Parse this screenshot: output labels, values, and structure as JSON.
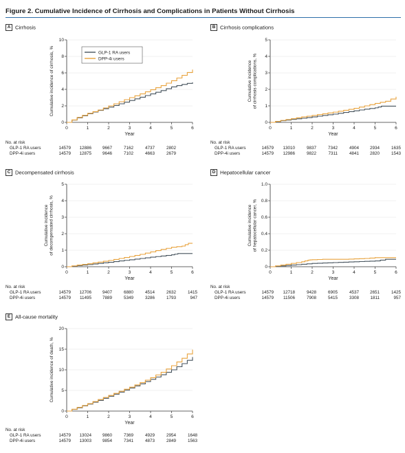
{
  "figure": {
    "title": "Figure 2. Cumulative Incidence of Cirrhosis and Complications in Patients Without Cirrhosis"
  },
  "colors": {
    "glp1": "#45525c",
    "dpp4": "#e8a23c",
    "axis": "#333333",
    "rule": "#2b6ea8"
  },
  "legend": {
    "glp1": "GLP-1 RA users",
    "dpp4": "DPP-4i users",
    "placement": "top-left"
  },
  "risk_table": {
    "header": "No. at risk",
    "row_labels": [
      "GLP-1 RA users",
      "DPP-4i users"
    ]
  },
  "chart_data": [
    {
      "type": "line",
      "letter": "A",
      "title": "Cirrhosis",
      "xlabel": "Year",
      "ylabel": "Cumulative incidence of cirrhosis, %",
      "xlim": [
        0,
        6
      ],
      "ylim": [
        0,
        10
      ],
      "xticks": [
        0,
        1,
        2,
        3,
        4,
        5,
        6
      ],
      "yticks": [
        0,
        2,
        4,
        6,
        8,
        10
      ],
      "grid": false,
      "legend": true,
      "series": [
        {
          "key": "glp1",
          "x": [
            0,
            0.5,
            1,
            1.5,
            2,
            2.5,
            3,
            3.5,
            4,
            4.5,
            5,
            5.5,
            6
          ],
          "y": [
            0,
            0.55,
            1.05,
            1.45,
            1.85,
            2.25,
            2.65,
            3.05,
            3.45,
            3.85,
            4.3,
            4.6,
            4.85
          ]
        },
        {
          "key": "dpp4",
          "x": [
            0,
            0.5,
            1,
            1.5,
            2,
            2.5,
            3,
            3.5,
            4,
            4.5,
            5,
            5.5,
            6
          ],
          "y": [
            0,
            0.6,
            1.1,
            1.5,
            2.0,
            2.5,
            3.0,
            3.45,
            3.95,
            4.45,
            5.05,
            5.7,
            6.4
          ]
        }
      ],
      "at_risk": {
        "glp1": [
          14579,
          12886,
          9667,
          7162,
          4737,
          2802,
          null
        ],
        "dpp4": [
          14579,
          12875,
          9646,
          7102,
          4663,
          2679,
          null
        ]
      }
    },
    {
      "type": "line",
      "letter": "B",
      "title": "Cirrhosis complications",
      "xlabel": "Year",
      "ylabel": "Cumulative incidence of cirrhosis complications, %",
      "ylabel_lines": [
        "Cumulative incidence",
        "of cirrhosis complications, %"
      ],
      "xlim": [
        0,
        6
      ],
      "ylim": [
        0,
        5
      ],
      "xticks": [
        0,
        1,
        2,
        3,
        4,
        5,
        6
      ],
      "yticks": [
        0,
        1,
        2,
        3,
        4,
        5
      ],
      "grid": false,
      "legend": false,
      "series": [
        {
          "key": "glp1",
          "x": [
            0,
            0.5,
            1,
            1.5,
            2,
            2.5,
            3,
            3.5,
            4,
            4.5,
            5,
            5.3,
            6
          ],
          "y": [
            0,
            0.1,
            0.18,
            0.25,
            0.33,
            0.42,
            0.5,
            0.6,
            0.7,
            0.8,
            0.88,
            0.98,
            0.98
          ]
        },
        {
          "key": "dpp4",
          "x": [
            0,
            0.5,
            1,
            1.5,
            2,
            2.5,
            3,
            3.5,
            4,
            4.5,
            5,
            5.5,
            6
          ],
          "y": [
            0,
            0.12,
            0.22,
            0.33,
            0.42,
            0.52,
            0.62,
            0.73,
            0.85,
            1.0,
            1.15,
            1.28,
            1.55
          ]
        }
      ],
      "at_risk": {
        "glp1": [
          14579,
          13010,
          9837,
          7342,
          4904,
          2934,
          1635
        ],
        "dpp4": [
          14579,
          12986,
          9822,
          7311,
          4841,
          2820,
          1543
        ]
      }
    },
    {
      "type": "line",
      "letter": "C",
      "title": "Decompensated cirrhosis",
      "xlabel": "Year",
      "ylabel": "Cumulative incidence of decompensated cirrhosis, %",
      "ylabel_lines": [
        "Cumulative incidence",
        "of decompensated cirrhosis, %"
      ],
      "xlim": [
        0,
        6
      ],
      "ylim": [
        0,
        5
      ],
      "xticks": [
        0,
        1,
        2,
        3,
        4,
        5,
        6
      ],
      "yticks": [
        0,
        1,
        2,
        3,
        4,
        5
      ],
      "grid": false,
      "legend": false,
      "series": [
        {
          "key": "glp1",
          "x": [
            0,
            0.5,
            1,
            1.5,
            2,
            2.5,
            3,
            3.5,
            4,
            4.5,
            5,
            5.3,
            6
          ],
          "y": [
            0,
            0.07,
            0.13,
            0.2,
            0.27,
            0.35,
            0.42,
            0.5,
            0.58,
            0.65,
            0.72,
            0.8,
            0.8
          ]
        },
        {
          "key": "dpp4",
          "x": [
            0,
            0.5,
            1,
            1.5,
            2,
            2.5,
            3,
            3.5,
            4,
            4.5,
            5,
            5.5,
            5.8,
            6
          ],
          "y": [
            0,
            0.1,
            0.18,
            0.28,
            0.38,
            0.5,
            0.62,
            0.75,
            0.9,
            1.05,
            1.18,
            1.25,
            1.42,
            1.42
          ]
        }
      ],
      "at_risk": {
        "glp1": [
          14579,
          12706,
          9407,
          6880,
          4514,
          2632,
          1415
        ],
        "dpp4": [
          14579,
          11495,
          7889,
          5349,
          3286,
          1793,
          947
        ]
      }
    },
    {
      "type": "line",
      "letter": "D",
      "title": "Hepatocellular cancer",
      "xlabel": "Year",
      "ylabel": "Cumulative incidence of hepatocellular cancer, %",
      "ylabel_lines": [
        "Cumulative incidence",
        "of hepatocellular cancer, %"
      ],
      "xlim": [
        0,
        6
      ],
      "ylim": [
        0,
        1.0
      ],
      "xticks": [
        0,
        1,
        2,
        3,
        4,
        5,
        6
      ],
      "yticks": [
        0,
        0.2,
        0.4,
        0.6,
        0.8,
        1.0
      ],
      "ytick_labels": [
        "0",
        "0.2",
        "0.4",
        "0.6",
        "0.8",
        "1.0"
      ],
      "grid": false,
      "legend": false,
      "series": [
        {
          "key": "glp1",
          "x": [
            0,
            0.5,
            1,
            1.5,
            2,
            2.5,
            3,
            3.5,
            4,
            4.5,
            5,
            5.5,
            6
          ],
          "y": [
            0,
            0.01,
            0.02,
            0.03,
            0.04,
            0.045,
            0.05,
            0.055,
            0.06,
            0.065,
            0.07,
            0.09,
            0.09
          ]
        },
        {
          "key": "dpp4",
          "x": [
            0,
            0.5,
            1,
            1.5,
            1.8,
            2,
            2.5,
            3,
            3.5,
            4,
            4.5,
            5,
            6
          ],
          "y": [
            0,
            0.02,
            0.04,
            0.06,
            0.08,
            0.085,
            0.09,
            0.09,
            0.09,
            0.095,
            0.1,
            0.11,
            0.11
          ]
        }
      ],
      "at_risk": {
        "glp1": [
          14579,
          12718,
          9428,
          6905,
          4537,
          2651,
          1425
        ],
        "dpp4": [
          14579,
          11506,
          7908,
          5415,
          3308,
          1811,
          957
        ]
      }
    },
    {
      "type": "line",
      "letter": "E",
      "title": "All-cause mortality",
      "xlabel": "Year",
      "ylabel": "Cumulative incidence of death, %",
      "xlim": [
        0,
        6
      ],
      "ylim": [
        0,
        20
      ],
      "xticks": [
        0,
        1,
        2,
        3,
        4,
        5,
        6
      ],
      "yticks": [
        0,
        5,
        10,
        15,
        20
      ],
      "grid": false,
      "legend": false,
      "series": [
        {
          "key": "glp1",
          "x": [
            0,
            0.5,
            1,
            1.5,
            2,
            2.5,
            3,
            3.5,
            4,
            4.5,
            5,
            5.5,
            6
          ],
          "y": [
            0,
            0.8,
            1.7,
            2.6,
            3.6,
            4.6,
            5.6,
            6.6,
            7.7,
            8.8,
            10.0,
            11.5,
            13.1
          ]
        },
        {
          "key": "dpp4",
          "x": [
            0,
            0.5,
            1,
            1.5,
            2,
            2.5,
            3,
            3.5,
            4,
            4.5,
            5,
            5.5,
            6
          ],
          "y": [
            0,
            0.9,
            1.8,
            2.8,
            3.8,
            4.8,
            5.8,
            6.9,
            8.1,
            9.4,
            11.0,
            12.8,
            14.9
          ]
        }
      ],
      "at_risk": {
        "glp1": [
          14579,
          13024,
          9860,
          7369,
          4929,
          2954,
          1648
        ],
        "dpp4": [
          14579,
          13003,
          9854,
          7341,
          4873,
          2849,
          1563
        ]
      }
    }
  ]
}
